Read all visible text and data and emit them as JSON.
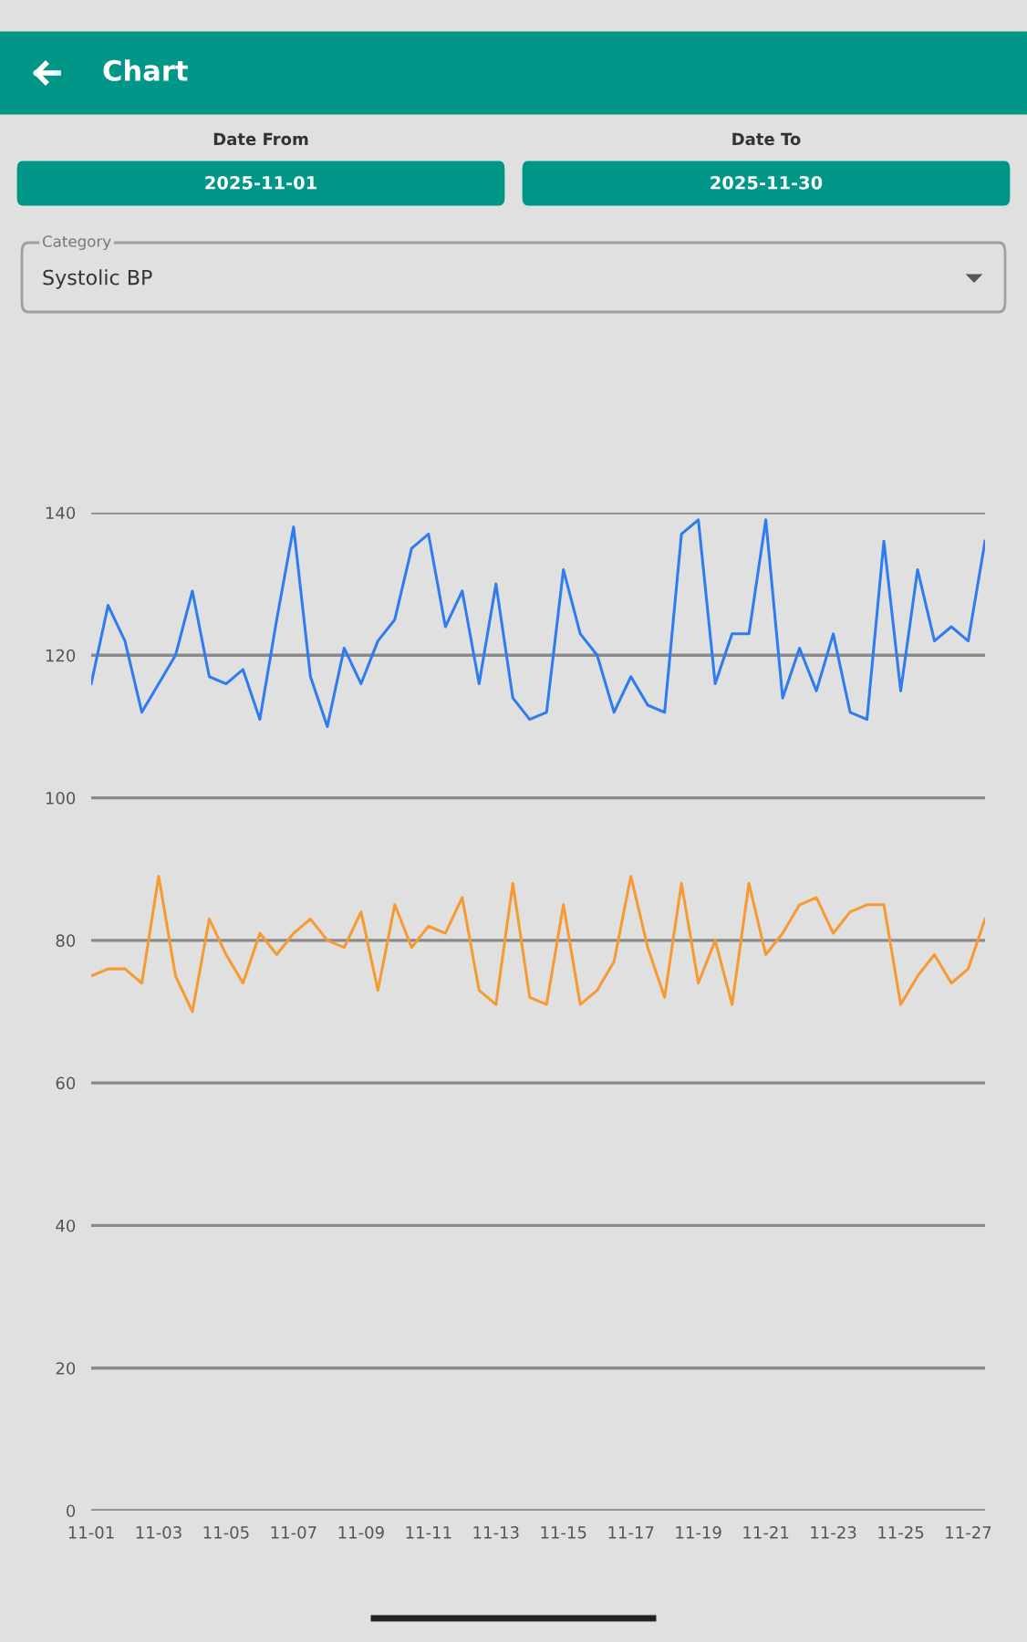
{
  "chart_data": {
    "type": "line",
    "title": "Chart",
    "annotations": [
      "Date From",
      "2025-11-01",
      "Date To",
      "2025-11-30",
      "Category",
      "Systolic BP"
    ],
    "categories": [
      "11-01",
      null,
      null,
      null,
      "11-03",
      null,
      null,
      null,
      "11-05",
      null,
      null,
      null,
      "11-07",
      null,
      null,
      null,
      "11-09",
      null,
      null,
      null,
      "11-11",
      null,
      null,
      null,
      "11-13",
      null,
      null,
      null,
      "11-15",
      null,
      null,
      null,
      "11-17",
      null,
      null,
      null,
      "11-19",
      null,
      null,
      null,
      "11-21",
      null,
      null,
      null,
      "11-23",
      null,
      null,
      null,
      "11-25",
      null,
      null,
      null,
      "11-27",
      null
    ],
    "series": [
      {
        "color": "#2f7cf0",
        "values": [
          116,
          127,
          122,
          112,
          116,
          120,
          129,
          117,
          116,
          118,
          111,
          125,
          138,
          117,
          110,
          121,
          116,
          122,
          125,
          135,
          137,
          124,
          129,
          116,
          130,
          114,
          111,
          112,
          132,
          123,
          120,
          112,
          117,
          113,
          112,
          137,
          139,
          116,
          123,
          123,
          139,
          114,
          121,
          115,
          123,
          112,
          111,
          136,
          115,
          132,
          122,
          124,
          122,
          136
        ]
      },
      {
        "color": "#f59b32",
        "values": [
          75,
          76,
          76,
          74,
          89,
          75,
          70,
          83,
          78,
          74,
          81,
          78,
          81,
          83,
          80,
          79,
          84,
          73,
          85,
          79,
          82,
          81,
          86,
          73,
          71,
          88,
          72,
          71,
          85,
          71,
          73,
          77,
          89,
          79,
          72,
          88,
          74,
          80,
          71,
          88,
          78,
          81,
          85,
          86,
          81,
          84,
          85,
          85,
          71,
          75,
          78,
          74,
          76,
          83
        ]
      }
    ],
    "ylim": [
      0,
      140
    ],
    "yticks": [
      0,
      20,
      40,
      60,
      80,
      100,
      120,
      140
    ],
    "grid": "y",
    "marker": "none",
    "line_style": "solid"
  }
}
